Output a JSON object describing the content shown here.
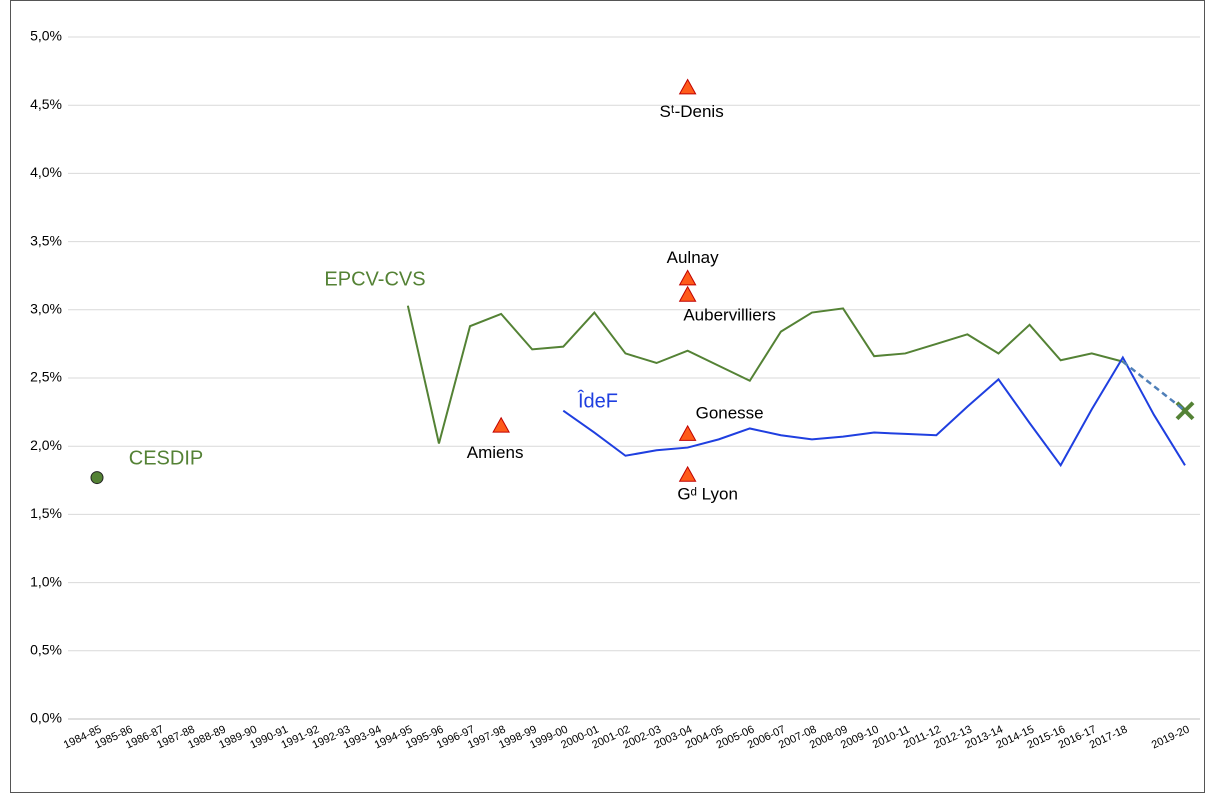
{
  "chart_data": {
    "type": "line",
    "categories": [
      "1984-85",
      "1985-86",
      "1986-87",
      "1987-88",
      "1988-89",
      "1989-90",
      "1990-91",
      "1991-92",
      "1992-93",
      "1993-94",
      "1994-95",
      "1995-96",
      "1996-97",
      "1997-98",
      "1998-99",
      "1999-00",
      "2000-01",
      "2001-02",
      "2002-03",
      "2003-04",
      "2004-05",
      "2005-06",
      "2006-07",
      "2007-08",
      "2008-09",
      "2009-10",
      "2010-11",
      "2011-12",
      "2012-13",
      "2013-14",
      "2014-15",
      "2015-16",
      "2016-17",
      "2017-18",
      null,
      "2019-20"
    ],
    "series": [
      {
        "name": "EPCV-CVS",
        "color": "#548235",
        "values": [
          null,
          null,
          null,
          null,
          null,
          null,
          null,
          null,
          null,
          null,
          3.03,
          2.02,
          2.88,
          2.97,
          2.71,
          2.73,
          2.98,
          2.68,
          2.61,
          2.7,
          2.59,
          2.48,
          2.84,
          2.98,
          3.01,
          2.66,
          2.68,
          2.75,
          2.82,
          2.68,
          2.89,
          2.63,
          2.68,
          2.62,
          null,
          null
        ]
      },
      {
        "name": "ÎdeF",
        "color": "#1f3fe0",
        "values": [
          null,
          null,
          null,
          null,
          null,
          null,
          null,
          null,
          null,
          null,
          null,
          null,
          null,
          null,
          null,
          2.26,
          2.1,
          1.93,
          1.97,
          1.99,
          2.05,
          2.13,
          2.08,
          2.05,
          2.07,
          2.1,
          2.09,
          2.08,
          2.29,
          2.49,
          2.17,
          1.86,
          2.27,
          2.65,
          2.23,
          1.86
        ]
      },
      {
        "name": "CESDIP",
        "color": "#548235",
        "marker": "circle",
        "values": [
          1.77,
          null,
          null,
          null,
          null,
          null,
          null,
          null,
          null,
          null,
          null,
          null,
          null,
          null,
          null,
          null,
          null,
          null,
          null,
          null,
          null,
          null,
          null,
          null,
          null,
          null,
          null,
          null,
          null,
          null,
          null,
          null,
          null,
          null,
          null,
          null
        ]
      },
      {
        "color": "#4f7fb8",
        "dashed": true,
        "end_marker": "cross",
        "end_marker_color": "#548235",
        "values": [
          null,
          null,
          null,
          null,
          null,
          null,
          null,
          null,
          null,
          null,
          null,
          null,
          null,
          null,
          null,
          null,
          null,
          null,
          null,
          null,
          null,
          null,
          null,
          null,
          null,
          null,
          null,
          null,
          null,
          null,
          null,
          null,
          null,
          2.62,
          2.44,
          2.26
        ]
      }
    ],
    "markers": {
      "color": "#ff5b1a",
      "points": [
        {
          "label": "Amiens",
          "x": "1997-98",
          "value": 2.15
        },
        {
          "label": "Sᵗ-Denis",
          "x": "2003-04",
          "value": 4.63
        },
        {
          "label": "Aulnay",
          "x": "2003-04",
          "value": 3.23
        },
        {
          "label": "Aubervilliers",
          "x": "2003-04",
          "value": 3.11
        },
        {
          "label": "Gonesse",
          "x": "2003-04",
          "value": 2.09
        },
        {
          "label": "Gᵈ Lyon",
          "x": "2003-04",
          "value": 1.79
        }
      ]
    },
    "ylim": [
      0,
      5
    ],
    "yticks": [
      {
        "value": 0,
        "label": "0,0%"
      },
      {
        "value": 0.5,
        "label": "0,5%"
      },
      {
        "value": 1,
        "label": "1,0%"
      },
      {
        "value": 1.5,
        "label": "1,5%"
      },
      {
        "value": 2,
        "label": "2,0%"
      },
      {
        "value": 2.5,
        "label": "2,5%"
      },
      {
        "value": 3,
        "label": "3,0%"
      },
      {
        "value": 3.5,
        "label": "3,5%"
      },
      {
        "value": 4,
        "label": "4,0%"
      },
      {
        "value": 4.5,
        "label": "4,5%"
      },
      {
        "value": 5,
        "label": "5,0%"
      }
    ],
    "grid": true
  }
}
